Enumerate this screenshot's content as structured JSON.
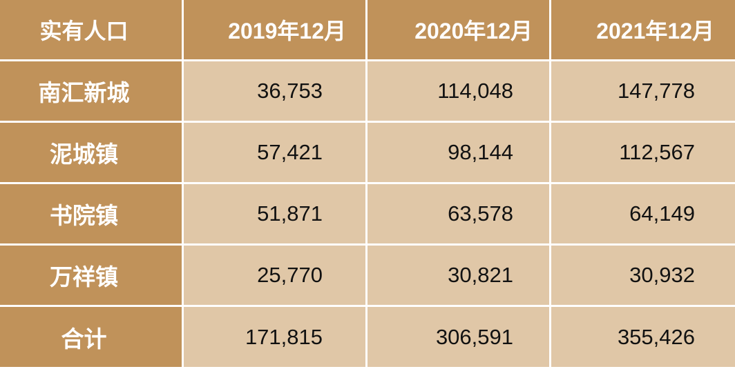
{
  "chart_data": {
    "type": "table",
    "columns": [
      "实有人口",
      "2019年12月",
      "2020年12月",
      "2021年12月"
    ],
    "rows": [
      {
        "label": "南汇新城",
        "values": [
          "36,753",
          "114,048",
          "147,778"
        ]
      },
      {
        "label": "泥城镇",
        "values": [
          "57,421",
          "98,144",
          "112,567"
        ]
      },
      {
        "label": "书院镇",
        "values": [
          "51,871",
          "63,578",
          "64,149"
        ]
      },
      {
        "label": "万祥镇",
        "values": [
          "25,770",
          "30,821",
          "30,932"
        ]
      },
      {
        "label": "合计",
        "values": [
          "171,815",
          "306,591",
          "355,426"
        ]
      }
    ]
  },
  "colors": {
    "header_bg": "#c0925a",
    "cell_bg": "#e0c7a7",
    "header_text": "#ffffff",
    "cell_text": "#111111"
  }
}
